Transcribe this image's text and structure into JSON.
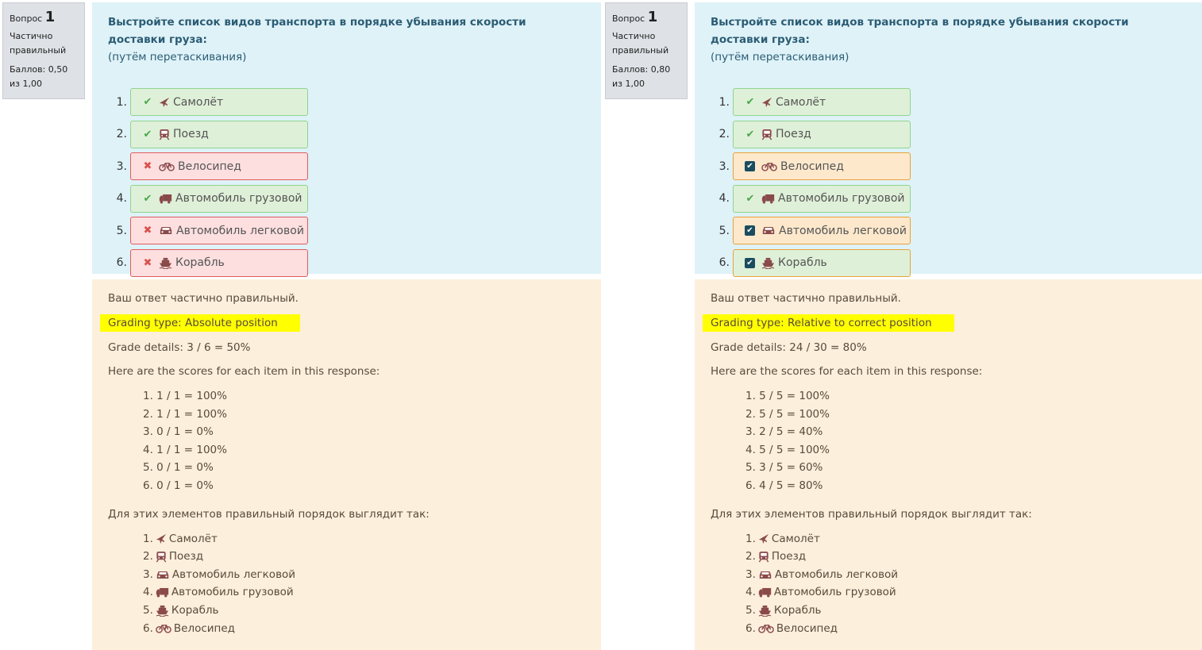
{
  "panels": [
    {
      "info": {
        "label": "Вопрос",
        "number": "1",
        "state": "Частично правильный",
        "score": "Баллов: 0,50 из 1,00"
      },
      "question": {
        "text": "Выстройте список видов транспорта в порядке убывания скорости доставки груза:",
        "hint": "(путём перетаскивания)"
      },
      "items": [
        {
          "num": "1.",
          "label": "Самолёт",
          "mark": "check-icon",
          "icon": "plane-icon",
          "status": "correct"
        },
        {
          "num": "2.",
          "label": "Поезд",
          "mark": "check-icon",
          "icon": "train-icon",
          "status": "correct"
        },
        {
          "num": "3.",
          "label": "Велосипед",
          "mark": "cross-icon",
          "icon": "bicycle-icon",
          "status": "incorrect"
        },
        {
          "num": "4.",
          "label": "Автомобиль грузовой",
          "mark": "check-icon",
          "icon": "truck-icon",
          "status": "correct"
        },
        {
          "num": "5.",
          "label": "Автомобиль легковой",
          "mark": "cross-icon",
          "icon": "car-icon",
          "status": "incorrect"
        },
        {
          "num": "6.",
          "label": "Корабль",
          "mark": "cross-icon",
          "icon": "ship-icon",
          "status": "incorrect"
        }
      ],
      "feedback": {
        "summary": "Ваш ответ частично правильный.",
        "grading_type": "Grading type: Absolute position",
        "grade_details": "Grade details: 3 / 6 = 50%",
        "scores_intro": "Here are the scores for each item in this response:",
        "scores": [
          "1. 1 / 1 = 100%",
          "2. 1 / 1 = 100%",
          "3. 0 / 1 = 0%",
          "4. 1 / 1 = 100%",
          "5. 0 / 1 = 0%",
          "6. 0 / 1 = 0%"
        ],
        "correct_intro": "Для этих элементов правильный порядок выглядит так:",
        "correct_order": [
          {
            "num": "1.",
            "label": "Самолёт",
            "icon": "plane-icon"
          },
          {
            "num": "2.",
            "label": "Поезд",
            "icon": "train-icon"
          },
          {
            "num": "3.",
            "label": "Автомобиль легковой",
            "icon": "car-icon"
          },
          {
            "num": "4.",
            "label": "Автомобиль грузовой",
            "icon": "truck-icon"
          },
          {
            "num": "5.",
            "label": "Корабль",
            "icon": "ship-icon"
          },
          {
            "num": "6.",
            "label": "Велосипед",
            "icon": "bicycle-icon"
          }
        ]
      }
    },
    {
      "info": {
        "label": "Вопрос",
        "number": "1",
        "state": "Частично правильный",
        "score": "Баллов: 0,80 из 1,00"
      },
      "question": {
        "text": "Выстройте список видов транспорта в порядке убывания скорости доставки груза:",
        "hint": "(путём перетаскивания)"
      },
      "items": [
        {
          "num": "1.",
          "label": "Самолёт",
          "mark": "check-icon",
          "icon": "plane-icon",
          "status": "correct"
        },
        {
          "num": "2.",
          "label": "Поезд",
          "mark": "check-icon",
          "icon": "train-icon",
          "status": "correct"
        },
        {
          "num": "3.",
          "label": "Велосипед",
          "mark": "checkbox-icon",
          "icon": "bicycle-icon",
          "status": "partial"
        },
        {
          "num": "4.",
          "label": "Автомобиль грузовой",
          "mark": "check-icon",
          "icon": "truck-icon",
          "status": "correct"
        },
        {
          "num": "5.",
          "label": "Автомобиль легковой",
          "mark": "checkbox-icon",
          "icon": "car-icon",
          "status": "partial"
        },
        {
          "num": "6.",
          "label": "Корабль",
          "mark": "checkbox-icon",
          "icon": "ship-icon",
          "status": "partial-green"
        }
      ],
      "feedback": {
        "summary": "Ваш ответ частично правильный.",
        "grading_type": "Grading type: Relative to correct position",
        "grade_details": "Grade details: 24 / 30 = 80%",
        "scores_intro": "Here are the scores for each item in this response:",
        "scores": [
          "1. 5 / 5 = 100%",
          "2. 5 / 5 = 100%",
          "3. 2 / 5 = 40%",
          "4. 5 / 5 = 100%",
          "5. 3 / 5 = 60%",
          "6. 4 / 5 = 80%"
        ],
        "correct_intro": "Для этих элементов правильный порядок выглядит так:",
        "correct_order": [
          {
            "num": "1.",
            "label": "Самолёт",
            "icon": "plane-icon"
          },
          {
            "num": "2.",
            "label": "Поезд",
            "icon": "train-icon"
          },
          {
            "num": "3.",
            "label": "Автомобиль легковой",
            "icon": "car-icon"
          },
          {
            "num": "4.",
            "label": "Автомобиль грузовой",
            "icon": "truck-icon"
          },
          {
            "num": "5.",
            "label": "Корабль",
            "icon": "ship-icon"
          },
          {
            "num": "6.",
            "label": "Велосипед",
            "icon": "bicycle-icon"
          }
        ]
      }
    }
  ],
  "colors": {
    "correct": "#dff0d8",
    "incorrect": "#fddfe0",
    "partial": "#fde8cc",
    "highlight": "#ffff00",
    "question_bg": "#def2f8",
    "feedback_bg": "#fcefdc"
  }
}
